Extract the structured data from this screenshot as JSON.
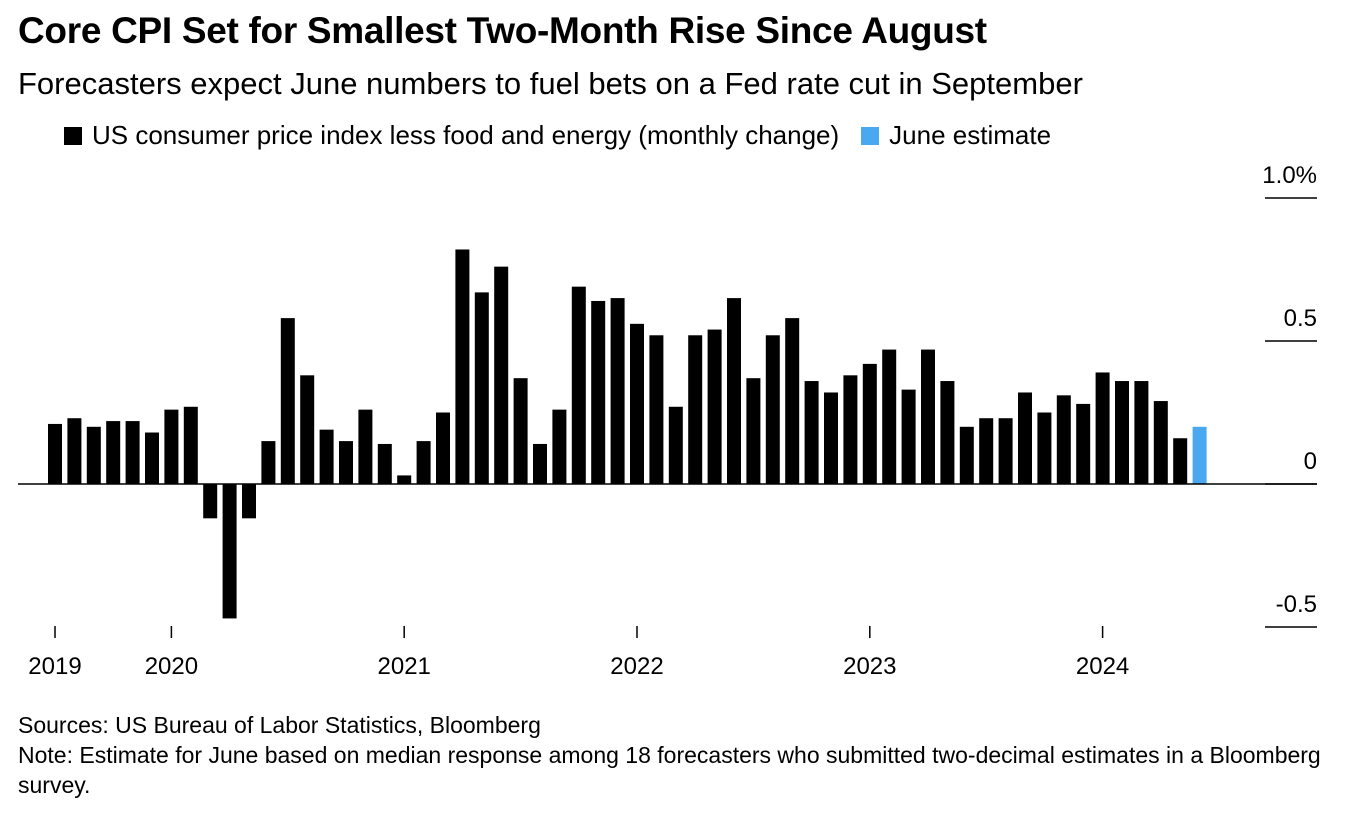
{
  "title": "Core CPI Set for Smallest Two-Month Rise Since August",
  "subtitle": "Forecasters expect June numbers to fuel bets on a Fed rate cut in September",
  "legend": [
    {
      "label": "US consumer price index less food and energy (monthly change)",
      "color": "#000000"
    },
    {
      "label": "June estimate",
      "color": "#4aa8f0"
    }
  ],
  "footer": {
    "sources": "Sources: US Bureau of Labor Statistics, Bloomberg",
    "note": "Note: Estimate for June based on median response among 18 forecasters who submitted two-decimal estimates in a Bloomberg survey."
  },
  "chart_data": {
    "type": "bar",
    "title": "Core CPI Set for Smallest Two-Month Rise Since August",
    "xlabel": "",
    "ylabel": "",
    "ylim": [
      -0.5,
      1.0
    ],
    "y_ticks": [
      {
        "value": 1.0,
        "label": "1.0%"
      },
      {
        "value": 0.5,
        "label": "0.5"
      },
      {
        "value": 0,
        "label": "0"
      },
      {
        "value": -0.5,
        "label": "-0.5"
      }
    ],
    "x_ticks": [
      {
        "index": 0,
        "label": "2019"
      },
      {
        "index": 6,
        "label": "2020"
      },
      {
        "index": 18,
        "label": "2021"
      },
      {
        "index": 30,
        "label": "2022"
      },
      {
        "index": 42,
        "label": "2023"
      },
      {
        "index": 54,
        "label": "2024"
      }
    ],
    "categories": [
      "2019-01",
      "2019-02",
      "2019-03",
      "2019-04",
      "2019-05",
      "2019-06",
      "2020-01",
      "2020-02",
      "2020-03",
      "2020-04",
      "2020-05",
      "2020-06",
      "2020-07",
      "2020-08",
      "2020-09",
      "2020-10",
      "2020-11",
      "2020-12",
      "2021-01",
      "2021-02",
      "2021-03",
      "2021-04",
      "2021-05",
      "2021-06",
      "2021-07",
      "2021-08",
      "2021-09",
      "2021-10",
      "2021-11",
      "2021-12",
      "2022-01",
      "2022-02",
      "2022-03",
      "2022-04",
      "2022-05",
      "2022-06",
      "2022-07",
      "2022-08",
      "2022-09",
      "2022-10",
      "2022-11",
      "2022-12",
      "2023-01",
      "2023-02",
      "2023-03",
      "2023-04",
      "2023-05",
      "2023-06",
      "2023-07",
      "2023-08",
      "2023-09",
      "2023-10",
      "2023-11",
      "2023-12",
      "2024-01",
      "2024-02",
      "2024-03",
      "2024-04",
      "2024-05",
      "2024-06"
    ],
    "series": [
      {
        "name": "US consumer price index less food and energy (monthly change)",
        "color": "#000000",
        "values": [
          0.21,
          0.23,
          0.2,
          0.22,
          0.22,
          0.18,
          0.26,
          0.27,
          -0.12,
          -0.47,
          -0.12,
          0.15,
          0.58,
          0.38,
          0.19,
          0.15,
          0.26,
          0.14,
          0.03,
          0.15,
          0.25,
          0.82,
          0.67,
          0.76,
          0.37,
          0.14,
          0.26,
          0.69,
          0.64,
          0.65,
          0.56,
          0.52,
          0.27,
          0.52,
          0.54,
          0.65,
          0.37,
          0.52,
          0.58,
          0.36,
          0.32,
          0.38,
          0.42,
          0.47,
          0.33,
          0.47,
          0.36,
          0.2,
          0.23,
          0.23,
          0.32,
          0.25,
          0.31,
          0.28,
          0.39,
          0.36,
          0.36,
          0.29,
          0.16,
          null
        ]
      },
      {
        "name": "June estimate",
        "color": "#4aa8f0",
        "values": [
          null,
          null,
          null,
          null,
          null,
          null,
          null,
          null,
          null,
          null,
          null,
          null,
          null,
          null,
          null,
          null,
          null,
          null,
          null,
          null,
          null,
          null,
          null,
          null,
          null,
          null,
          null,
          null,
          null,
          null,
          null,
          null,
          null,
          null,
          null,
          null,
          null,
          null,
          null,
          null,
          null,
          null,
          null,
          null,
          null,
          null,
          null,
          null,
          null,
          null,
          null,
          null,
          null,
          null,
          null,
          null,
          null,
          null,
          null,
          0.2
        ]
      }
    ]
  }
}
